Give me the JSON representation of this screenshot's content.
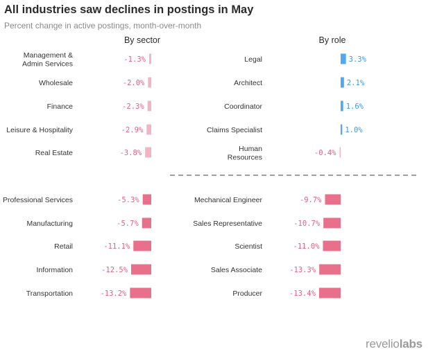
{
  "title": "All industries saw declines in postings in May",
  "subtitle": "Percent change in active postings, month-over-month",
  "brand": {
    "name_regular": "revelio",
    "name_bold": "labs"
  },
  "colors": {
    "negative": "#e8708b",
    "negative_light": "#f3b4c3",
    "positive": "#52a8ee",
    "text": "#333333",
    "value_negative": "#e06183",
    "value_positive": "#3f97e0",
    "divider": "#666666"
  },
  "chart_data": [
    {
      "type": "bar",
      "orientation": "horizontal",
      "title": "By sector",
      "categories": [
        "Management &\nAdmin Services",
        "Wholesale",
        "Finance",
        "Leisure & Hospitality",
        "Real Estate",
        "Professional Services",
        "Manufacturing",
        "Retail",
        "Information",
        "Transportation"
      ],
      "values": [
        -1.3,
        -2.0,
        -2.3,
        -2.9,
        -3.8,
        -5.3,
        -5.7,
        -11.1,
        -12.5,
        -13.2
      ],
      "labels": [
        "-1.3%",
        "-2.0%",
        "-2.3%",
        "-2.9%",
        "-3.8%",
        "-5.3%",
        "-5.7%",
        "-11.1%",
        "-12.5%",
        "-13.2%"
      ],
      "unit": "%",
      "split_after_index": 4
    },
    {
      "type": "bar",
      "orientation": "horizontal",
      "title": "By role",
      "categories": [
        "Legal",
        "Architect",
        "Coordinator",
        "Claims Specialist",
        "Human\nResources",
        "Mechanical Engineer",
        "Sales Representative",
        "Scientist",
        "Sales Associate",
        "Producer"
      ],
      "values": [
        3.3,
        2.1,
        1.6,
        1.0,
        -0.4,
        -9.7,
        -10.7,
        -11.0,
        -13.3,
        -13.4
      ],
      "labels": [
        "3.3%",
        "2.1%",
        "1.6%",
        "1.0%",
        "-0.4%",
        "-9.7%",
        "-10.7%",
        "-11.0%",
        "-13.3%",
        "-13.4%"
      ],
      "unit": "%",
      "split_after_index": 4
    }
  ]
}
